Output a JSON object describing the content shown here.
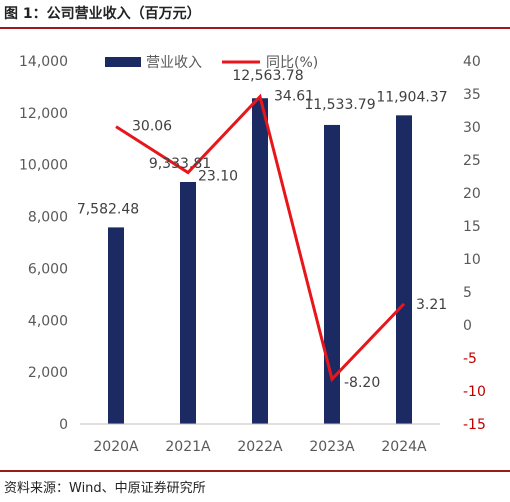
{
  "figure_title": "图 1：公司营业收入（百万元）",
  "source_note": "资料来源：Wind、中原证券研究所",
  "colors": {
    "bar": "#1b2a63",
    "line": "#e8161b",
    "axis": "#bfbfbf",
    "rule": "#9b1b1b",
    "negative_tick": "#c00000"
  },
  "chart_data": {
    "type": "bar",
    "categories": [
      "2020A",
      "2021A",
      "2022A",
      "2023A",
      "2024A"
    ],
    "series": [
      {
        "name": "营业收入",
        "type": "bar",
        "axis": "left",
        "values": [
          7582.48,
          9333.81,
          12563.78,
          11533.79,
          11904.37
        ],
        "labels": [
          "7,582.48",
          "9,333.81",
          "12,563.78",
          "11,533.79",
          "11,904.37"
        ]
      },
      {
        "name": "同比(%)",
        "type": "line",
        "axis": "right",
        "values": [
          30.06,
          23.1,
          34.61,
          -8.2,
          3.21
        ],
        "labels": [
          "30.06",
          "23.10",
          "34.61",
          "-8.20",
          "3.21"
        ]
      }
    ],
    "y_left": {
      "min": 0,
      "max": 14000,
      "step": 2000,
      "ticks": [
        "0",
        "2,000",
        "4,000",
        "6,000",
        "8,000",
        "10,000",
        "12,000",
        "14,000"
      ]
    },
    "y_right": {
      "min": -15,
      "max": 40,
      "step": 5,
      "ticks": [
        "-15",
        "-10",
        "-5",
        "0",
        "5",
        "10",
        "15",
        "20",
        "25",
        "30",
        "35",
        "40"
      ]
    },
    "grid": false,
    "legend": "top"
  }
}
